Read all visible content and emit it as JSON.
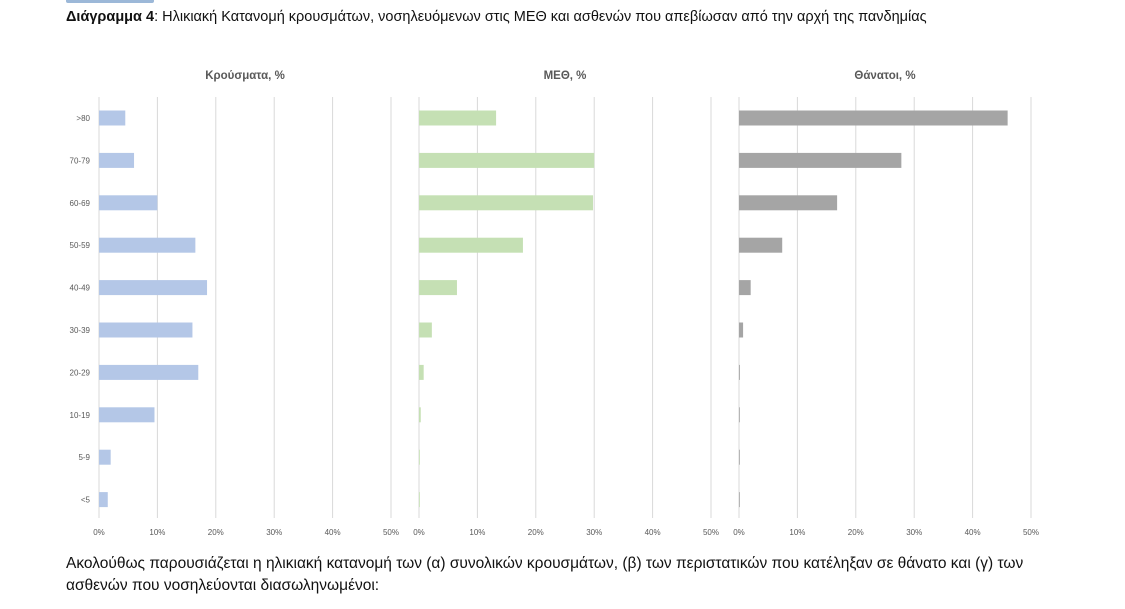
{
  "caption": {
    "label": "Διάγραμμα 4",
    "text": ": Ηλικιακή Κατανομή κρουσμάτων, νοσηλευόμενων στις ΜΕΘ και ασθενών που απεβίωσαν από την αρχή της πανδημίας"
  },
  "paragraph": "Ακολούθως παρουσιάζεται η ηλικιακή κατανομή των (α) συνολικών κρουσμάτων, (β) των περιστατικών που κατέληξαν σε θάνατο και (γ) των ασθενών που νοσηλεύονται διασωληνωμένοι:",
  "colors": {
    "cases": "#b4c7e7",
    "icu": "#c5e0b4",
    "deaths": "#a5a5a5",
    "grid": "#d9d9d9",
    "axis_text": "#595959"
  },
  "chart_data": [
    {
      "type": "bar",
      "orientation": "horizontal",
      "title": "Κρούσματα, %",
      "categories": [
        ">80",
        "70-79",
        "60-69",
        "50-59",
        "40-49",
        "30-39",
        "20-29",
        "10-19",
        "5-9",
        "<5"
      ],
      "values": [
        4.5,
        6,
        10,
        16.5,
        18.5,
        16,
        17,
        9.5,
        2,
        1.5
      ],
      "xlim": [
        0,
        50
      ],
      "ticks": [
        "0%",
        "10%",
        "20%",
        "30%",
        "40%",
        "50%"
      ],
      "grid": true
    },
    {
      "type": "bar",
      "orientation": "horizontal",
      "title": "ΜΕΘ, %",
      "categories": [
        ">80",
        "70-79",
        "60-69",
        "50-59",
        "40-49",
        "30-39",
        "20-29",
        "10-19",
        "5-9",
        "<5"
      ],
      "values": [
        13.2,
        30,
        29.8,
        17.8,
        6.5,
        2.2,
        0.8,
        0.3,
        0.1,
        0.1
      ],
      "xlim": [
        0,
        50
      ],
      "ticks": [
        "0%",
        "10%",
        "20%",
        "30%",
        "40%",
        "50%"
      ],
      "grid": true
    },
    {
      "type": "bar",
      "orientation": "horizontal",
      "title": "Θάνατοι, %",
      "categories": [
        ">80",
        "70-79",
        "60-69",
        "50-59",
        "40-49",
        "30-39",
        "20-29",
        "10-19",
        "5-9",
        "<5"
      ],
      "values": [
        46,
        27.8,
        16.8,
        7.4,
        2,
        0.7,
        0.15,
        0.1,
        0.05,
        0.05
      ],
      "xlim": [
        0,
        50
      ],
      "ticks": [
        "0%",
        "10%",
        "20%",
        "30%",
        "40%",
        "50%"
      ],
      "grid": true
    }
  ]
}
